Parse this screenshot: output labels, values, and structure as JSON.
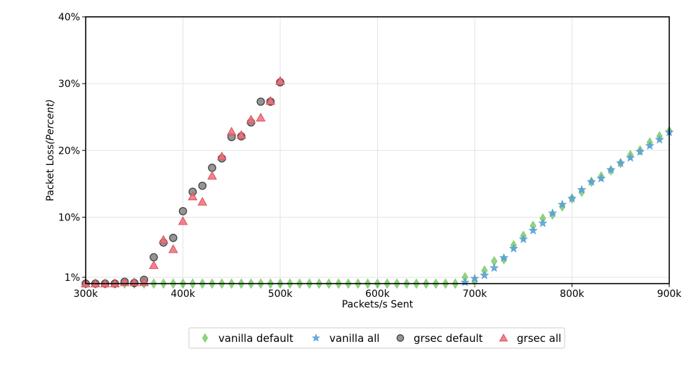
{
  "chart_data": {
    "type": "scatter",
    "xlabel": "Packets/s Sent",
    "ylabel_main": "Packet Loss",
    "ylabel_italic": "(Percent)",
    "xlim": [
      300000,
      900000
    ],
    "ylim": [
      0,
      40
    ],
    "x_ticks": [
      {
        "value": 300000,
        "label": "300k"
      },
      {
        "value": 400000,
        "label": "400k"
      },
      {
        "value": 500000,
        "label": "500k"
      },
      {
        "value": 600000,
        "label": "600k"
      },
      {
        "value": 700000,
        "label": "700k"
      },
      {
        "value": 800000,
        "label": "800k"
      },
      {
        "value": 900000,
        "label": "900k"
      }
    ],
    "y_ticks": [
      {
        "value": 1,
        "label": "1%"
      },
      {
        "value": 10,
        "label": "10%"
      },
      {
        "value": 20,
        "label": "20%"
      },
      {
        "value": 30,
        "label": "30%"
      },
      {
        "value": 40,
        "label": "40%"
      }
    ],
    "grid": true,
    "legend_position": "bottom-center",
    "series": [
      {
        "name": "vanilla default",
        "marker": "diamond",
        "color": "#7fcc6e",
        "x": [
          300000,
          310000,
          320000,
          330000,
          340000,
          350000,
          360000,
          370000,
          380000,
          390000,
          400000,
          410000,
          420000,
          430000,
          440000,
          450000,
          460000,
          470000,
          480000,
          490000,
          500000,
          510000,
          520000,
          530000,
          540000,
          550000,
          560000,
          570000,
          580000,
          590000,
          600000,
          610000,
          620000,
          630000,
          640000,
          650000,
          660000,
          670000,
          680000,
          690000,
          700000,
          710000,
          720000,
          730000,
          740000,
          750000,
          760000,
          770000,
          780000,
          790000,
          800000,
          810000,
          820000,
          830000,
          840000,
          850000,
          860000,
          870000,
          880000,
          890000,
          900000
        ],
        "values": [
          0,
          0,
          0,
          0,
          0,
          0,
          0,
          0,
          0,
          0,
          0,
          0,
          0,
          0,
          0,
          0,
          0,
          0,
          0,
          0,
          0,
          0,
          0,
          0,
          0,
          0,
          0,
          0,
          0,
          0,
          0,
          0,
          0,
          0,
          0,
          0,
          0,
          0,
          0,
          1.0,
          0.4,
          2.0,
          3.4,
          3.7,
          5.8,
          7.2,
          8.7,
          9.8,
          10.4,
          11.6,
          12.8,
          13.8,
          15.3,
          16.1,
          17.0,
          18.1,
          19.3,
          20.0,
          21.2,
          22.1,
          22.9
        ]
      },
      {
        "name": "vanilla all",
        "marker": "star",
        "color": "#5a9fd8",
        "x": [
          690000,
          700000,
          710000,
          720000,
          730000,
          740000,
          750000,
          760000,
          770000,
          780000,
          790000,
          800000,
          810000,
          820000,
          830000,
          840000,
          850000,
          860000,
          870000,
          880000,
          890000,
          900000
        ],
        "values": [
          0.2,
          0.8,
          1.3,
          2.4,
          3.9,
          5.3,
          6.7,
          8.0,
          9.1,
          10.6,
          11.9,
          12.8,
          14.1,
          15.3,
          15.8,
          17.1,
          18.1,
          18.9,
          19.8,
          20.7,
          21.6,
          22.7
        ]
      },
      {
        "name": "grsec default",
        "marker": "circle",
        "color": "#8a8a8a",
        "x": [
          300000,
          310000,
          320000,
          330000,
          340000,
          350000,
          360000,
          370000,
          380000,
          390000,
          400000,
          410000,
          420000,
          430000,
          440000,
          450000,
          460000,
          470000,
          480000,
          490000,
          500000
        ],
        "values": [
          0,
          0,
          0,
          0,
          0.3,
          0.1,
          0.6,
          4.0,
          6.2,
          6.9,
          10.9,
          13.8,
          14.7,
          17.4,
          18.8,
          22.0,
          22.1,
          24.2,
          27.3,
          27.3,
          30.2
        ]
      },
      {
        "name": "grsec all",
        "marker": "triangle",
        "color": "#ec6f7a",
        "x": [
          300000,
          310000,
          320000,
          330000,
          340000,
          350000,
          360000,
          370000,
          380000,
          390000,
          400000,
          410000,
          420000,
          430000,
          440000,
          450000,
          460000,
          470000,
          480000,
          490000,
          500000
        ],
        "values": [
          0,
          0,
          0,
          0,
          0.2,
          0.2,
          0.2,
          2.8,
          6.6,
          5.2,
          9.4,
          13.1,
          12.3,
          16.2,
          19.1,
          22.8,
          22.3,
          24.6,
          24.9,
          27.4,
          30.4
        ]
      }
    ]
  }
}
